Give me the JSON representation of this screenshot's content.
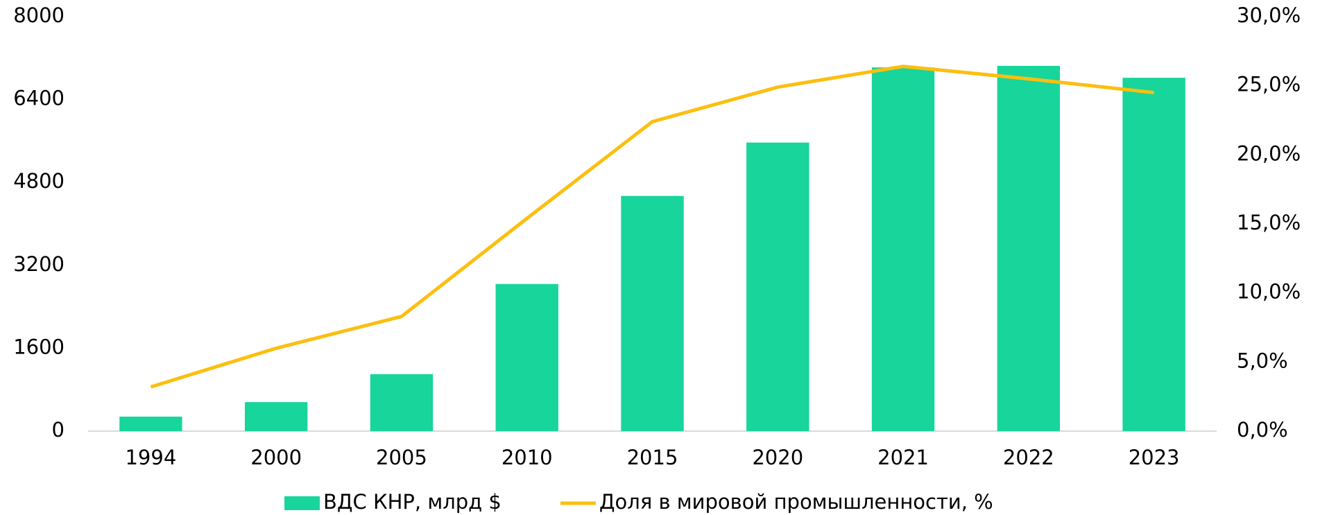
{
  "chart_data": {
    "type": "bar",
    "categories": [
      "1994",
      "2000",
      "2005",
      "2010",
      "2015",
      "2020",
      "2021",
      "2022",
      "2023"
    ],
    "series": [
      {
        "name": "ВДС КНР, млрд $",
        "type": "bar",
        "color": "#17d59b",
        "values": [
          280,
          560,
          1100,
          2840,
          4540,
          5570,
          7020,
          7050,
          6820
        ]
      },
      {
        "name": "Доля в мировой промышленности, %",
        "type": "line",
        "axis": "y2",
        "color": "#fcbf10",
        "values": [
          3.2,
          6.0,
          8.3,
          15.4,
          22.4,
          24.9,
          26.4,
          25.5,
          24.5
        ]
      }
    ],
    "ylim": [
      0,
      8000
    ],
    "yticks": [
      0,
      1600,
      3200,
      4800,
      6400,
      8000
    ],
    "y2lim": [
      0,
      30
    ],
    "y2ticks": [
      {
        "value": 0,
        "label": "0,0%"
      },
      {
        "value": 5,
        "label": "5,0%"
      },
      {
        "value": 10,
        "label": "10,0%"
      },
      {
        "value": 15,
        "label": "15,0%"
      },
      {
        "value": 20,
        "label": "20,0%"
      },
      {
        "value": 25,
        "label": "25,0%"
      },
      {
        "value": 30,
        "label": "30,0%"
      }
    ],
    "grid": false,
    "legend": "bottom"
  }
}
